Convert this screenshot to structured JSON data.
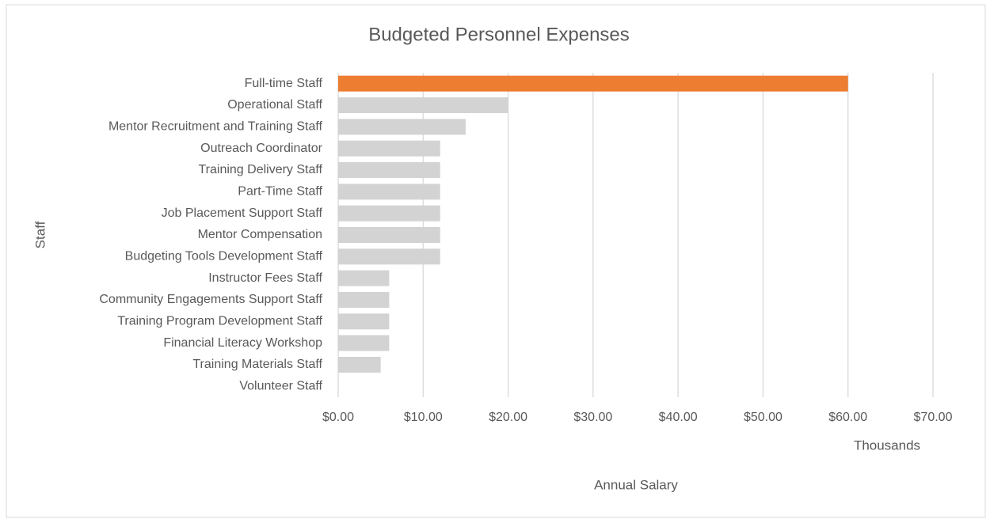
{
  "chart_data": {
    "type": "bar",
    "orientation": "horizontal",
    "title": "Budgeted Personnel Expenses",
    "categories": [
      "Full-time Staff",
      "Operational Staff",
      "Mentor Recruitment and Training Staff",
      "Outreach Coordinator",
      "Training Delivery Staff",
      "Part-Time Staff",
      "Job Placement Support Staff",
      "Mentor Compensation",
      "Budgeting Tools Development Staff",
      "Instructor Fees Staff",
      "Community Engagements Support Staff",
      "Training Program Development Staff",
      "Financial Literacy Workshop",
      "Training Materials Staff",
      "Volunteer Staff"
    ],
    "values": [
      60,
      20,
      15,
      12,
      12,
      12,
      12,
      12,
      12,
      6,
      6,
      6,
      6,
      5,
      0
    ],
    "colors": [
      "#ed7d31",
      "#d3d3d3",
      "#d3d3d3",
      "#d3d3d3",
      "#d3d3d3",
      "#d3d3d3",
      "#d3d3d3",
      "#d3d3d3",
      "#d3d3d3",
      "#d3d3d3",
      "#d3d3d3",
      "#d3d3d3",
      "#d3d3d3",
      "#d3d3d3",
      "#d3d3d3"
    ],
    "xlim": [
      0,
      70
    ],
    "xticks": [
      {
        "value": 0,
        "label": "$0.00"
      },
      {
        "value": 10,
        "label": "$10.00"
      },
      {
        "value": 20,
        "label": "$20.00"
      },
      {
        "value": 30,
        "label": "$30.00"
      },
      {
        "value": 40,
        "label": "$40.00"
      },
      {
        "value": 50,
        "label": "$50.00"
      },
      {
        "value": 60,
        "label": "$60.00"
      },
      {
        "value": 70,
        "label": "$70.00"
      }
    ],
    "x_units_label": "Thousands",
    "x_label": "Annual Salary",
    "y_label": "Staff",
    "grid": true
  }
}
